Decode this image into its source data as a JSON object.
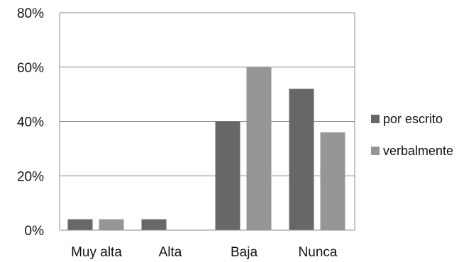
{
  "chart_data": {
    "type": "bar",
    "categories": [
      "Muy alta",
      "Alta",
      "Baja",
      "Nunca"
    ],
    "series": [
      {
        "name": "por escrito",
        "values": [
          4,
          4,
          40,
          52
        ],
        "color": "#676767"
      },
      {
        "name": "verbalmente",
        "values": [
          4,
          0,
          60,
          36
        ],
        "color": "#969696"
      }
    ],
    "ylim": [
      0,
      80
    ],
    "yticks": [
      0,
      20,
      40,
      60,
      80
    ],
    "ytick_labels": [
      "0%",
      "20%",
      "40%",
      "60%",
      "80%"
    ],
    "grid": true,
    "legend_position": "right",
    "title": "",
    "xlabel": "",
    "ylabel": ""
  }
}
